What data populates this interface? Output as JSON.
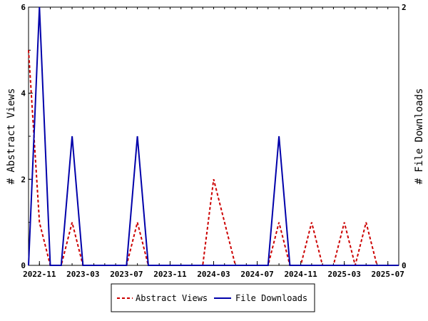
{
  "chart_data": {
    "type": "line",
    "x": [
      "2022-10",
      "2022-11",
      "2022-12",
      "2023-01",
      "2023-02",
      "2023-03",
      "2023-04",
      "2023-05",
      "2023-06",
      "2023-07",
      "2023-08",
      "2023-09",
      "2023-10",
      "2023-11",
      "2023-12",
      "2024-01",
      "2024-02",
      "2024-03",
      "2024-04",
      "2024-05",
      "2024-06",
      "2024-07",
      "2024-08",
      "2024-09",
      "2024-10",
      "2024-11",
      "2024-12",
      "2025-01",
      "2025-02",
      "2025-03",
      "2025-04",
      "2025-05",
      "2025-06",
      "2025-07",
      "2025-08"
    ],
    "x_tick_labels": [
      "2022-11",
      "2023-03",
      "2023-07",
      "2023-11",
      "2024-03",
      "2024-07",
      "2024-11",
      "2025-03",
      "2025-07"
    ],
    "series": [
      {
        "name": "Abstract Views",
        "axis": "left",
        "color": "#cc0000",
        "style": "dashed",
        "values": [
          5,
          1,
          0,
          0,
          1,
          0,
          0,
          0,
          0,
          0,
          1,
          0,
          0,
          0,
          0,
          0,
          0,
          2,
          1,
          0,
          0,
          0,
          0,
          1,
          0,
          0,
          1,
          0,
          0,
          1,
          0,
          1,
          0,
          0,
          0
        ]
      },
      {
        "name": "File Downloads",
        "axis": "right",
        "color": "#0000aa",
        "style": "solid",
        "values": [
          0,
          2,
          0,
          0,
          1,
          0,
          0,
          0,
          0,
          0,
          1,
          0,
          0,
          0,
          0,
          0,
          0,
          0,
          0,
          0,
          0,
          0,
          0,
          1,
          0,
          0,
          0,
          0,
          0,
          0,
          0,
          0,
          0,
          0,
          0
        ]
      }
    ],
    "y_left": {
      "label": "# Abstract Views",
      "ticks": [
        "0",
        "2",
        "4",
        "6"
      ],
      "lim": [
        0,
        6
      ]
    },
    "y_right": {
      "label": "# File Downloads",
      "ticks": [
        "0",
        "2"
      ],
      "lim": [
        0,
        2
      ]
    },
    "legend": {
      "placement": "bottom-center",
      "items": [
        "Abstract Views",
        "File Downloads"
      ]
    },
    "grid": false
  }
}
